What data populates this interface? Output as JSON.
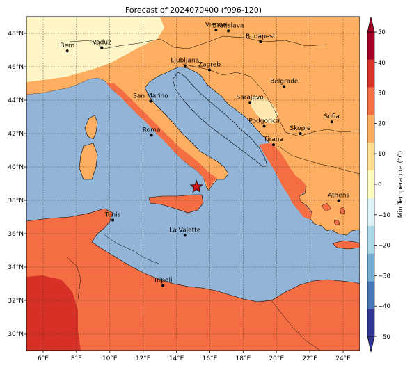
{
  "title": "Forecast of 2024070400 (f096-120)",
  "map": {
    "lon_range": [
      5,
      25
    ],
    "lat_range": [
      29,
      49
    ],
    "lon_ticks": [
      {
        "lon": 6,
        "label": "6°E"
      },
      {
        "lon": 8,
        "label": "8°E"
      },
      {
        "lon": 10,
        "label": "10°E"
      },
      {
        "lon": 12,
        "label": "12°E"
      },
      {
        "lon": 14,
        "label": "14°E"
      },
      {
        "lon": 16,
        "label": "16°E"
      },
      {
        "lon": 18,
        "label": "18°E"
      },
      {
        "lon": 20,
        "label": "20°E"
      },
      {
        "lon": 22,
        "label": "22°E"
      },
      {
        "lon": 24,
        "label": "24°E"
      }
    ],
    "lat_ticks": [
      {
        "lat": 30,
        "label": "30°N"
      },
      {
        "lat": 32,
        "label": "32°N"
      },
      {
        "lat": 34,
        "label": "34°N"
      },
      {
        "lat": 36,
        "label": "36°N"
      },
      {
        "lat": 38,
        "label": "38°N"
      },
      {
        "lat": 40,
        "label": "40°N"
      },
      {
        "lat": 42,
        "label": "42°N"
      },
      {
        "lat": 44,
        "label": "44°N"
      },
      {
        "lat": 46,
        "label": "46°N"
      },
      {
        "lat": 48,
        "label": "48°N"
      }
    ],
    "sea_color": "#91b4d7",
    "cities": [
      {
        "name": "Bern",
        "lon": 7.45,
        "lat": 46.95
      },
      {
        "name": "Vaduz",
        "lon": 9.52,
        "lat": 47.14
      },
      {
        "name": "Vienna",
        "lon": 16.37,
        "lat": 48.21
      },
      {
        "name": "Bratislava",
        "lon": 17.11,
        "lat": 48.15
      },
      {
        "name": "Budapest",
        "lon": 19.04,
        "lat": 47.5
      },
      {
        "name": "Ljubljana",
        "lon": 14.51,
        "lat": 46.06
      },
      {
        "name": "Zagreb",
        "lon": 15.98,
        "lat": 45.81
      },
      {
        "name": "Belgrade",
        "lon": 20.46,
        "lat": 44.82
      },
      {
        "name": "San Marino",
        "lon": 12.45,
        "lat": 43.94
      },
      {
        "name": "Sarajevo",
        "lon": 18.41,
        "lat": 43.86
      },
      {
        "name": "Podgorica",
        "lon": 19.26,
        "lat": 42.44
      },
      {
        "name": "Skopje",
        "lon": 21.43,
        "lat": 42.0
      },
      {
        "name": "Sofia",
        "lon": 23.32,
        "lat": 42.7
      },
      {
        "name": "Roma",
        "lon": 12.5,
        "lat": 41.9
      },
      {
        "name": "Tirana",
        "lon": 19.82,
        "lat": 41.33
      },
      {
        "name": "Athens",
        "lon": 23.73,
        "lat": 37.98
      },
      {
        "name": "Tunis",
        "lon": 10.18,
        "lat": 36.81
      },
      {
        "name": "La Valette",
        "lon": 14.51,
        "lat": 35.9
      },
      {
        "name": "Tripoli",
        "lon": 13.19,
        "lat": 32.89
      }
    ],
    "marker": {
      "lon": 15.2,
      "lat": 38.8,
      "color": "#d7191c"
    }
  },
  "colorbar": {
    "label": "Min Temperature (°C)",
    "levels": [
      -50,
      -40,
      -30,
      -20,
      -10,
      0,
      10,
      20,
      30,
      40,
      50
    ],
    "tick_labels": [
      "−50",
      "−40",
      "−30",
      "−20",
      "−10",
      "0",
      "10",
      "20",
      "30",
      "40",
      "50"
    ],
    "colors": [
      "#313695",
      "#4575b4",
      "#74add1",
      "#abd9e9",
      "#e0f3f8",
      "#ffffbf",
      "#fee090",
      "#fdae61",
      "#f46d43",
      "#d73027",
      "#a50026"
    ],
    "extend": "both"
  }
}
